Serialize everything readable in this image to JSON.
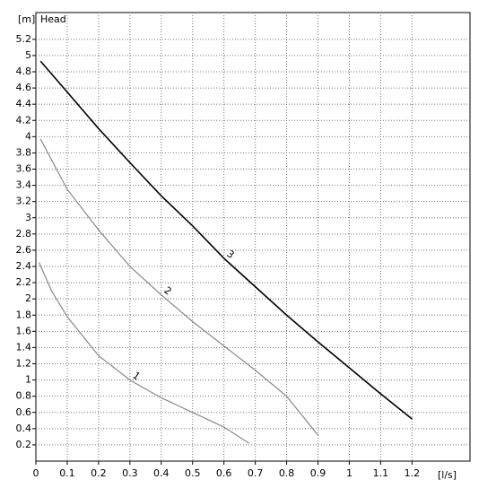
{
  "chart_data": {
    "type": "line",
    "y_label": "[m]",
    "title": "Head",
    "x_label": "[l/s]",
    "xlim": [
      0,
      1.385
    ],
    "ylim": [
      0,
      5.53
    ],
    "xticks": [
      0,
      0.1,
      0.2,
      0.3,
      0.4,
      0.5,
      0.6,
      0.7,
      0.8,
      0.9,
      1,
      1.1,
      1.2
    ],
    "yticks": [
      0.2,
      0.4,
      0.6,
      0.8,
      1,
      1.2,
      1.4,
      1.6,
      1.8,
      2,
      2.2,
      2.4,
      2.6,
      2.8,
      3,
      3.2,
      3.4,
      3.6,
      3.8,
      4,
      4.2,
      4.4,
      4.6,
      4.8,
      5,
      5.2
    ],
    "grid": true,
    "series": [
      {
        "name": "1",
        "color": "#888888",
        "x": [
          0.01,
          0.05,
          0.1,
          0.2,
          0.3,
          0.4,
          0.5,
          0.6,
          0.68
        ],
        "values": [
          2.45,
          2.1,
          1.78,
          1.3,
          1.0,
          0.78,
          0.6,
          0.42,
          0.22
        ]
      },
      {
        "name": "2",
        "color": "#888888",
        "x": [
          0.015,
          0.1,
          0.2,
          0.3,
          0.4,
          0.5,
          0.6,
          0.7,
          0.8,
          0.9
        ],
        "values": [
          3.97,
          3.35,
          2.85,
          2.4,
          2.05,
          1.72,
          1.42,
          1.12,
          0.8,
          0.32
        ]
      },
      {
        "name": "3",
        "color": "#000000",
        "x": [
          0.015,
          0.1,
          0.2,
          0.3,
          0.4,
          0.5,
          0.6,
          0.7,
          0.8,
          0.9,
          1.0,
          1.1,
          1.2
        ],
        "values": [
          4.93,
          4.55,
          4.1,
          3.68,
          3.27,
          2.9,
          2.5,
          2.15,
          1.8,
          1.47,
          1.15,
          0.83,
          0.52
        ]
      }
    ]
  }
}
